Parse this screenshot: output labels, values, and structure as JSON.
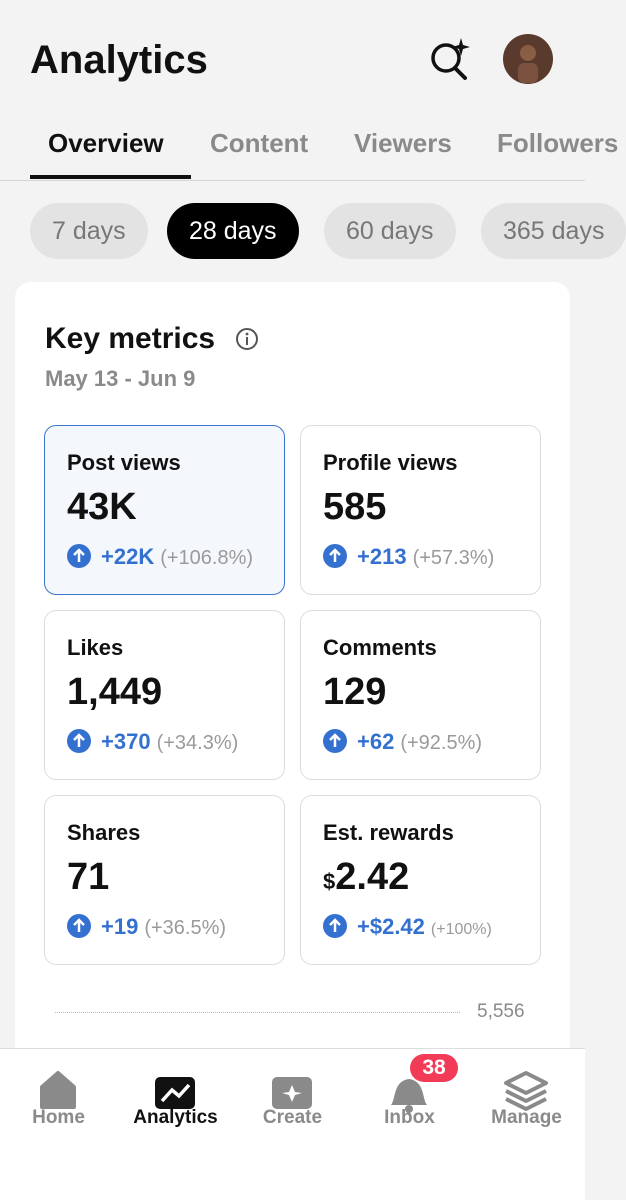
{
  "header": {
    "title": "Analytics"
  },
  "tabs": [
    "Overview",
    "Content",
    "Viewers",
    "Followers"
  ],
  "ranges": [
    "7 days",
    "28 days",
    "60 days",
    "365 days"
  ],
  "card": {
    "title": "Key metrics",
    "date_range": "May 13 - Jun 9",
    "metrics": [
      {
        "label": "Post views",
        "value": "43K",
        "change": "+22K",
        "percent": "(+106.8%)"
      },
      {
        "label": "Profile views",
        "value": "585",
        "change": "+213",
        "percent": "(+57.3%)"
      },
      {
        "label": "Likes",
        "value": "1,449",
        "change": "+370",
        "percent": "(+34.3%)"
      },
      {
        "label": "Comments",
        "value": "129",
        "change": "+62",
        "percent": "(+92.5%)"
      },
      {
        "label": "Shares",
        "value": "71",
        "change": "+19",
        "percent": "(+36.5%)"
      },
      {
        "label": "Est. rewards",
        "currency": "$",
        "value": "2.42",
        "change": "+$2.42",
        "percent": "(+100%)"
      }
    ],
    "chart_tick": "5,556"
  },
  "nav": {
    "items": [
      "Home",
      "Analytics",
      "Create",
      "Inbox",
      "Manage"
    ],
    "inbox_badge": "38"
  }
}
